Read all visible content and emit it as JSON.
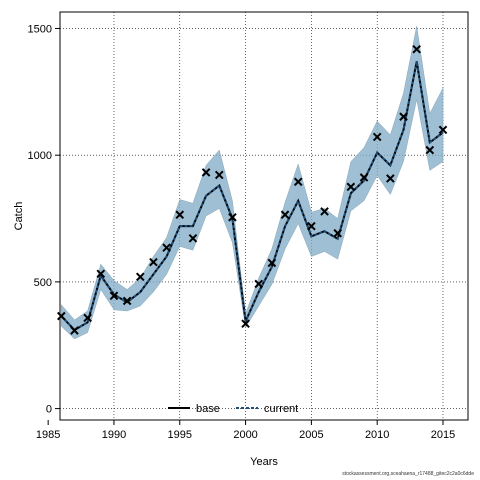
{
  "chart_data": {
    "type": "line",
    "xlabel": "Years",
    "ylabel": "Catch",
    "xlim": [
      1985.9,
      2016.9
    ],
    "ylim": [
      -45,
      1565
    ],
    "x_ticks": [
      1985,
      1990,
      1995,
      2000,
      2005,
      2010,
      2015
    ],
    "y_ticks": [
      0,
      500,
      1000,
      1500
    ],
    "grid": true,
    "legend_position": "bottom-center",
    "x": [
      1986,
      1987,
      1988,
      1989,
      1990,
      1991,
      1992,
      1993,
      1994,
      1995,
      1996,
      1997,
      1998,
      1999,
      2000,
      2001,
      2002,
      2003,
      2004,
      2005,
      2006,
      2007,
      2008,
      2009,
      2010,
      2011,
      2012,
      2013,
      2014,
      2015
    ],
    "series": [
      {
        "name": "base",
        "color": "#000000",
        "style": "solid",
        "values": [
          365,
          310,
          340,
          525,
          450,
          420,
          460,
          530,
          600,
          720,
          720,
          840,
          880,
          750,
          345,
          460,
          560,
          720,
          820,
          680,
          700,
          670,
          850,
          900,
          1010,
          960,
          1100,
          1370,
          1050,
          1090
        ]
      },
      {
        "name": "current",
        "color": "#1f4e79",
        "style": "dashed",
        "values": [
          365,
          310,
          340,
          525,
          450,
          420,
          460,
          530,
          600,
          720,
          720,
          840,
          880,
          750,
          345,
          460,
          560,
          720,
          820,
          680,
          700,
          670,
          850,
          900,
          1010,
          960,
          1100,
          1370,
          1050,
          1090
        ]
      }
    ],
    "uncertainty_band": {
      "color": "#7ea9c6",
      "lower": [
        325,
        275,
        300,
        470,
        390,
        385,
        405,
        460,
        530,
        640,
        625,
        760,
        790,
        655,
        320,
        405,
        490,
        630,
        730,
        600,
        620,
        590,
        780,
        820,
        920,
        845,
        975,
        1220,
        940,
        975
      ],
      "upper": [
        410,
        350,
        385,
        570,
        505,
        470,
        515,
        600,
        675,
        825,
        810,
        960,
        1020,
        820,
        375,
        515,
        630,
        815,
        965,
        775,
        790,
        750,
        975,
        1030,
        1135,
        1080,
        1245,
        1510,
        1165,
        1265
      ]
    },
    "observed": {
      "marker": "x",
      "color": "#000000",
      "values": [
        365,
        308,
        358,
        532,
        445,
        425,
        520,
        578,
        635,
        765,
        672,
        932,
        922,
        755,
        335,
        492,
        575,
        765,
        895,
        720,
        778,
        692,
        875,
        912,
        1072,
        908,
        1152,
        1418,
        1020,
        1100
      ]
    }
  },
  "footer": {
    "text": "stockassessment.org,sceahaena_r17488_gitec2c2a0c6dde"
  }
}
